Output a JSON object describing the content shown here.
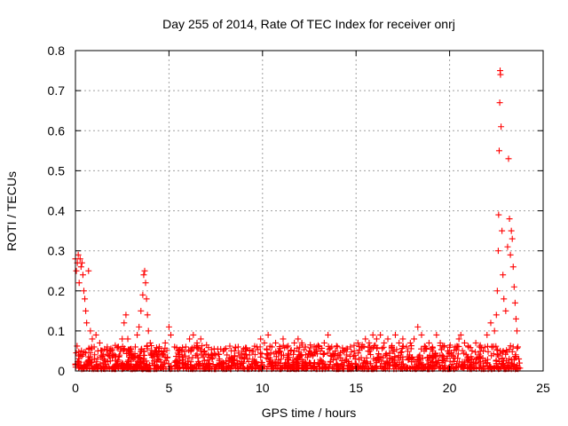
{
  "chart_data": {
    "type": "scatter",
    "title": "Day 255 of 2014, Rate Of TEC Index for receiver onrj",
    "xlabel": "GPS time / hours",
    "ylabel": "ROTI / TECUs",
    "xlim": [
      0,
      25
    ],
    "ylim": [
      0,
      0.8
    ],
    "xticks": [
      0,
      5,
      10,
      15,
      20,
      25
    ],
    "yticks": [
      0,
      0.1,
      0.2,
      0.3,
      0.4,
      0.5,
      0.6,
      0.7,
      0.8
    ],
    "xtick_labels": [
      "0",
      "5",
      "10",
      "15",
      "20",
      "25"
    ],
    "ytick_labels": [
      "0",
      "0.1",
      "0.2",
      "0.3",
      "0.4",
      "0.5",
      "0.6",
      "0.7",
      "0.8"
    ],
    "grid": true,
    "marker": "+",
    "color": "#ff0000",
    "series": [
      {
        "name": "",
        "points": [
          [
            0.0,
            0.28
          ],
          [
            0.05,
            0.25
          ],
          [
            0.1,
            0.27
          ],
          [
            0.15,
            0.29
          ],
          [
            0.2,
            0.22
          ],
          [
            0.25,
            0.28
          ],
          [
            0.3,
            0.26
          ],
          [
            0.35,
            0.27
          ],
          [
            0.4,
            0.24
          ],
          [
            0.45,
            0.2
          ],
          [
            0.5,
            0.18
          ],
          [
            0.55,
            0.15
          ],
          [
            0.6,
            0.12
          ],
          [
            0.7,
            0.25
          ],
          [
            0.8,
            0.1
          ],
          [
            0.9,
            0.08
          ],
          [
            1.0,
            0.06
          ],
          [
            1.1,
            0.09
          ],
          [
            1.2,
            0.05
          ],
          [
            1.3,
            0.07
          ],
          [
            1.5,
            0.04
          ],
          [
            1.7,
            0.06
          ],
          [
            1.9,
            0.05
          ],
          [
            2.1,
            0.04
          ],
          [
            2.3,
            0.06
          ],
          [
            2.5,
            0.08
          ],
          [
            2.6,
            0.12
          ],
          [
            2.7,
            0.14
          ],
          [
            2.8,
            0.08
          ],
          [
            2.9,
            0.05
          ],
          [
            3.0,
            0.04
          ],
          [
            3.2,
            0.06
          ],
          [
            3.3,
            0.09
          ],
          [
            3.4,
            0.11
          ],
          [
            3.5,
            0.15
          ],
          [
            3.6,
            0.19
          ],
          [
            3.65,
            0.24
          ],
          [
            3.7,
            0.25
          ],
          [
            3.75,
            0.22
          ],
          [
            3.8,
            0.18
          ],
          [
            3.85,
            0.14
          ],
          [
            3.9,
            0.1
          ],
          [
            4.0,
            0.07
          ],
          [
            4.2,
            0.04
          ],
          [
            4.4,
            0.03
          ],
          [
            4.6,
            0.05
          ],
          [
            4.8,
            0.07
          ],
          [
            5.0,
            0.11
          ],
          [
            5.1,
            0.09
          ],
          [
            5.3,
            0.06
          ],
          [
            5.5,
            0.05
          ],
          [
            5.7,
            0.04
          ],
          [
            5.9,
            0.06
          ],
          [
            6.1,
            0.08
          ],
          [
            6.3,
            0.09
          ],
          [
            6.5,
            0.07
          ],
          [
            6.7,
            0.08
          ],
          [
            6.9,
            0.05
          ],
          [
            7.1,
            0.04
          ],
          [
            7.3,
            0.03
          ],
          [
            7.5,
            0.04
          ],
          [
            7.7,
            0.03
          ],
          [
            7.9,
            0.05
          ],
          [
            8.1,
            0.04
          ],
          [
            8.3,
            0.03
          ],
          [
            8.5,
            0.05
          ],
          [
            8.7,
            0.06
          ],
          [
            8.9,
            0.04
          ],
          [
            9.1,
            0.05
          ],
          [
            9.3,
            0.04
          ],
          [
            9.5,
            0.05
          ],
          [
            9.7,
            0.06
          ],
          [
            9.9,
            0.08
          ],
          [
            10.1,
            0.07
          ],
          [
            10.3,
            0.09
          ],
          [
            10.5,
            0.06
          ],
          [
            10.7,
            0.07
          ],
          [
            10.9,
            0.05
          ],
          [
            11.1,
            0.08
          ],
          [
            11.3,
            0.06
          ],
          [
            11.5,
            0.05
          ],
          [
            11.7,
            0.07
          ],
          [
            11.9,
            0.08
          ],
          [
            12.1,
            0.07
          ],
          [
            12.3,
            0.06
          ],
          [
            12.5,
            0.05
          ],
          [
            12.7,
            0.04
          ],
          [
            12.9,
            0.06
          ],
          [
            13.1,
            0.05
          ],
          [
            13.3,
            0.07
          ],
          [
            13.5,
            0.09
          ],
          [
            13.7,
            0.06
          ],
          [
            13.9,
            0.05
          ],
          [
            14.1,
            0.04
          ],
          [
            14.3,
            0.05
          ],
          [
            14.5,
            0.04
          ],
          [
            14.7,
            0.06
          ],
          [
            14.9,
            0.05
          ],
          [
            15.1,
            0.07
          ],
          [
            15.3,
            0.06
          ],
          [
            15.5,
            0.08
          ],
          [
            15.7,
            0.07
          ],
          [
            15.9,
            0.09
          ],
          [
            16.1,
            0.08
          ],
          [
            16.3,
            0.09
          ],
          [
            16.5,
            0.07
          ],
          [
            16.7,
            0.08
          ],
          [
            16.9,
            0.06
          ],
          [
            17.1,
            0.09
          ],
          [
            17.3,
            0.07
          ],
          [
            17.5,
            0.08
          ],
          [
            17.7,
            0.06
          ],
          [
            17.9,
            0.07
          ],
          [
            18.1,
            0.08
          ],
          [
            18.3,
            0.11
          ],
          [
            18.5,
            0.09
          ],
          [
            18.7,
            0.06
          ],
          [
            18.9,
            0.07
          ],
          [
            19.1,
            0.05
          ],
          [
            19.3,
            0.09
          ],
          [
            19.5,
            0.07
          ],
          [
            19.7,
            0.06
          ],
          [
            19.9,
            0.05
          ],
          [
            20.1,
            0.04
          ],
          [
            20.3,
            0.06
          ],
          [
            20.5,
            0.08
          ],
          [
            20.6,
            0.09
          ],
          [
            20.8,
            0.07
          ],
          [
            21.0,
            0.06
          ],
          [
            21.2,
            0.05
          ],
          [
            21.4,
            0.07
          ],
          [
            21.6,
            0.06
          ],
          [
            21.8,
            0.05
          ],
          [
            22.0,
            0.09
          ],
          [
            22.2,
            0.12
          ],
          [
            22.4,
            0.1
          ],
          [
            22.5,
            0.14
          ],
          [
            22.55,
            0.2
          ],
          [
            22.6,
            0.3
          ],
          [
            22.62,
            0.39
          ],
          [
            22.65,
            0.55
          ],
          [
            22.68,
            0.67
          ],
          [
            22.7,
            0.75
          ],
          [
            22.72,
            0.74
          ],
          [
            22.75,
            0.61
          ],
          [
            22.8,
            0.35
          ],
          [
            22.85,
            0.24
          ],
          [
            22.9,
            0.18
          ],
          [
            23.0,
            0.15
          ],
          [
            23.1,
            0.31
          ],
          [
            23.15,
            0.53
          ],
          [
            23.2,
            0.38
          ],
          [
            23.25,
            0.29
          ],
          [
            23.3,
            0.35
          ],
          [
            23.35,
            0.33
          ],
          [
            23.4,
            0.26
          ],
          [
            23.45,
            0.21
          ],
          [
            23.5,
            0.17
          ],
          [
            23.55,
            0.13
          ],
          [
            23.6,
            0.1
          ],
          [
            23.65,
            0.06
          ],
          [
            23.7,
            0.03
          ]
        ]
      }
    ]
  }
}
